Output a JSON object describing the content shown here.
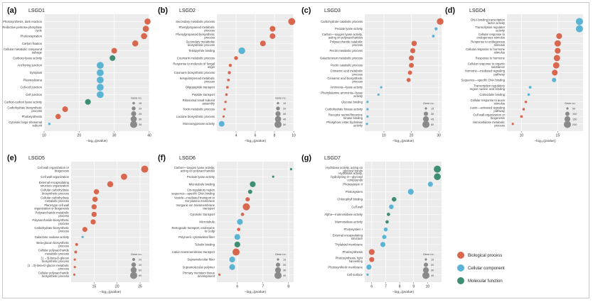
{
  "colors": {
    "Biological process": "#d9674f",
    "Cellular component": "#5bb4d4",
    "Molecular function": "#3e8e72"
  },
  "legend": {
    "size_title": "Gene no.",
    "color_items": [
      "Biological process",
      "Cellular component",
      "Molecular function"
    ]
  },
  "chart_data": [
    {
      "letter": "(a)",
      "title": "LSGD1",
      "type": "scatter",
      "xlabel": "−log₁₀(pvalue)",
      "xlim": [
        10,
        40
      ],
      "xticks": [
        10,
        20,
        30,
        40
      ],
      "size_legend": [
        15,
        20,
        25,
        30,
        35
      ],
      "terms": [
        {
          "label": "Photosynthesis, dark reaction",
          "x": 39.5,
          "cat": "Biological process",
          "size": 30
        },
        {
          "label": "Reductive pentose-phosphate cycle",
          "x": 39,
          "cat": "Biological process",
          "size": 30
        },
        {
          "label": "Photorespiration",
          "x": 38.5,
          "cat": "Biological process",
          "size": 30
        },
        {
          "label": "Carbon fixation",
          "x": 36,
          "cat": "Biological process",
          "size": 30
        },
        {
          "label": "Cellular metabolic compound salvage",
          "x": 30,
          "cat": "Biological process",
          "size": 28
        },
        {
          "label": "Carboxy-lyase activity",
          "x": 29.5,
          "cat": "Molecular function",
          "size": 28
        },
        {
          "label": "Anchoring junction",
          "x": 26,
          "cat": "Cellular component",
          "size": 34
        },
        {
          "label": "Symplast",
          "x": 26,
          "cat": "Cellular component",
          "size": 34
        },
        {
          "label": "Plasmodesma",
          "x": 26,
          "cat": "Cellular component",
          "size": 34
        },
        {
          "label": "Cell-cell junction",
          "x": 26,
          "cat": "Cellular component",
          "size": 34
        },
        {
          "label": "Cell junction",
          "x": 26,
          "cat": "Cellular component",
          "size": 34
        },
        {
          "label": "Carbon-carbon lyase activity",
          "x": 22.5,
          "cat": "Molecular function",
          "size": 28
        },
        {
          "label": "Carbohydrate biosynthetic process",
          "x": 16,
          "cat": "Biological process",
          "size": 28
        },
        {
          "label": "Photosynthesis",
          "x": 14,
          "cat": "Biological process",
          "size": 26
        },
        {
          "label": "Cytosolic large ribosomal subunit",
          "x": 11.5,
          "cat": "Cellular component",
          "size": 14
        }
      ]
    },
    {
      "letter": "(b)",
      "title": "LSGD2",
      "type": "scatter",
      "xlabel": "−log₁₀(pvalue)",
      "xlim": [
        2,
        10
      ],
      "xticks": [
        4,
        6,
        8,
        10
      ],
      "size_legend": [
        10,
        20,
        30,
        40,
        50
      ],
      "terms": [
        {
          "label": "Secondary metabolic process",
          "x": 9.8,
          "cat": "Biological process",
          "size": 48
        },
        {
          "label": "Phenylpropanoid metabolic process",
          "x": 7.8,
          "cat": "Biological process",
          "size": 35
        },
        {
          "label": "Phenylpropanoid biosynthetic process",
          "x": 7.8,
          "cat": "Biological process",
          "size": 35
        },
        {
          "label": "Secondary metabolite biosynthetic process",
          "x": 6.8,
          "cat": "Biological process",
          "size": 35
        },
        {
          "label": "Tetrapyrrole binding",
          "x": 4.6,
          "cat": "Cellular component",
          "size": 45
        },
        {
          "label": "Coumarin metabolic process",
          "x": 4.0,
          "cat": "Biological process",
          "size": 20
        },
        {
          "label": "Response to molecule of fungal origin",
          "x": 3.4,
          "cat": "Biological process",
          "size": 15
        },
        {
          "label": "Coumarin biosynthetic process",
          "x": 3.3,
          "cat": "Biological process",
          "size": 15
        },
        {
          "label": "Sesquiterpenoid metabolic process",
          "x": 3.2,
          "cat": "Biological process",
          "size": 12
        },
        {
          "label": "Oligopeptide transport",
          "x": 3.1,
          "cat": "Biological process",
          "size": 12
        },
        {
          "label": "Peptide transport",
          "x": 3.0,
          "cat": "Biological process",
          "size": 12
        },
        {
          "label": "Ribosomal small subunit assembly",
          "x": 2.9,
          "cat": "Biological process",
          "size": 10
        },
        {
          "label": "Toxin metabolic process",
          "x": 2.8,
          "cat": "Biological process",
          "size": 10
        },
        {
          "label": "Lactone biosynthetic process",
          "x": 2.7,
          "cat": "Biological process",
          "size": 10
        },
        {
          "label": "Monooxygenase activity",
          "x": 2.5,
          "cat": "Cellular component",
          "size": 35
        }
      ]
    },
    {
      "letter": "(c)",
      "title": "LSGD3",
      "type": "scatter",
      "xlabel": "−log₁₀(pvalue)",
      "xlim": [
        3,
        31
      ],
      "xticks": [
        10,
        20,
        30
      ],
      "size_legend": [
        15,
        30,
        45,
        60
      ],
      "terms": [
        {
          "label": "Carbohydrate catabolic process",
          "x": 30.5,
          "cat": "Biological process",
          "size": 55
        },
        {
          "label": "Pectate lyase activity",
          "x": 29,
          "cat": "Cellular component",
          "size": 20
        },
        {
          "label": "Carbon—oxygen lyase activity, acting on polysaccharides",
          "x": 28,
          "cat": "Cellular component",
          "size": 18
        },
        {
          "label": "Polysaccharide catabolic process",
          "x": 21,
          "cat": "Biological process",
          "size": 40
        },
        {
          "label": "Pectin metabolic process",
          "x": 20.5,
          "cat": "Biological process",
          "size": 38
        },
        {
          "label": "Galacturonan metabolic process",
          "x": 20,
          "cat": "Biological process",
          "size": 38
        },
        {
          "label": "Pectin catabolic process",
          "x": 20,
          "cat": "Biological process",
          "size": 36
        },
        {
          "label": "Cinnamic acid metabolic process",
          "x": 19.5,
          "cat": "Biological process",
          "size": 30
        },
        {
          "label": "Cinnamic acid biosynthetic process",
          "x": 19,
          "cat": "Biological process",
          "size": 28
        },
        {
          "label": "Ammonia—lyase activity",
          "x": 9,
          "cat": "Cellular component",
          "size": 15
        },
        {
          "label": "Phenylalanine ammonia—lyase activity",
          "x": 8,
          "cat": "Cellular component",
          "size": 15
        },
        {
          "label": "Glucose binding",
          "x": 4,
          "cat": "Cellular component",
          "size": 15
        },
        {
          "label": "Carbohydrate kinase activity",
          "x": 4,
          "cat": "Cellular component",
          "size": 15
        },
        {
          "label": "Receptor serine/threonine kinase binding",
          "x": 4,
          "cat": "Cellular component",
          "size": 15
        },
        {
          "label": "Phosphoric ester hydrolase activity",
          "x": 3.8,
          "cat": "Cellular component",
          "size": 15
        }
      ]
    },
    {
      "letter": "(d)",
      "title": "LSGD4",
      "type": "scatter",
      "xlabel": "−log₁₀(pvalue)",
      "xlim": [
        8,
        18.5
      ],
      "xticks": [
        10,
        15
      ],
      "size_legend": [
        50,
        100,
        150,
        200
      ],
      "terms": [
        {
          "label": "DNA-binding transcription factor activity",
          "x": 18,
          "cat": "Cellular component",
          "size": 200
        },
        {
          "label": "Transcription regulator activity",
          "x": 18,
          "cat": "Cellular component",
          "size": 200
        },
        {
          "label": "Cellular response to endogenous stimulus",
          "x": 15.2,
          "cat": "Biological process",
          "size": 150
        },
        {
          "label": "Response to endogenous stimulus",
          "x": 15.0,
          "cat": "Biological process",
          "size": 170
        },
        {
          "label": "Cellular response to hormone stimulus",
          "x": 15.0,
          "cat": "Biological process",
          "size": 150
        },
        {
          "label": "Response to hormone",
          "x": 14.9,
          "cat": "Biological process",
          "size": 170
        },
        {
          "label": "Cellular response to organic substance",
          "x": 14.8,
          "cat": "Biological process",
          "size": 170
        },
        {
          "label": "Hormone—mediated signaling pathway",
          "x": 14.6,
          "cat": "Biological process",
          "size": 150
        },
        {
          "label": "Sequence—specific DNA binding",
          "x": 14.5,
          "cat": "Cellular component",
          "size": 100
        },
        {
          "label": "Transcription regulatory region nucleic acid binding",
          "x": 11.2,
          "cat": "Cellular component",
          "size": 60
        },
        {
          "label": "Calmodulin binding",
          "x": 11.0,
          "cat": "Cellular component",
          "size": 55
        },
        {
          "label": "Cellular response to auxin stimulus",
          "x": 10.6,
          "cat": "Biological process",
          "size": 55
        },
        {
          "label": "Auxin—activated signaling pathway",
          "x": 10.3,
          "cat": "Biological process",
          "size": 55
        },
        {
          "label": "Cell wall organization or biogenesis",
          "x": 10.0,
          "cat": "Biological process",
          "size": 60
        },
        {
          "label": "Hemicellulose metabolic process",
          "x": 8.8,
          "cat": "Biological process",
          "size": 50
        }
      ]
    },
    {
      "letter": "(e)",
      "title": "LSGD5",
      "type": "scatter",
      "xlabel": "−log₁₀(pvalue)",
      "xlim": [
        10,
        27
      ],
      "xticks": [
        15,
        20,
        25
      ],
      "size_legend": [
        20,
        40,
        60,
        80
      ],
      "terms": [
        {
          "label": "Cell wall organization or biogenesis",
          "x": 26,
          "cat": "Biological process",
          "size": 80
        },
        {
          "label": "Cell wall organization",
          "x": 21.5,
          "cat": "Biological process",
          "size": 65
        },
        {
          "label": "External encapsulating structure organization",
          "x": 18.5,
          "cat": "Biological process",
          "size": 60
        },
        {
          "label": "Cellular carbohydrate biosynthetic process",
          "x": 15.5,
          "cat": "Biological process",
          "size": 50
        },
        {
          "label": "Cellular carbohydrate metabolic process",
          "x": 15.2,
          "cat": "Biological process",
          "size": 50
        },
        {
          "label": "Plant-type cell wall organization or biogenesis",
          "x": 15.0,
          "cat": "Biological process",
          "size": 48
        },
        {
          "label": "Polysaccharide metabolic process",
          "x": 15.0,
          "cat": "Biological process",
          "size": 48
        },
        {
          "label": "Polysaccharide biosynthetic process",
          "x": 14.8,
          "cat": "Biological process",
          "size": 48
        },
        {
          "label": "Carbohydrate biosynthetic process",
          "x": 13.0,
          "cat": "Biological process",
          "size": 45
        },
        {
          "label": "Galactose oxidase activity",
          "x": 12.5,
          "cat": "Cellular component",
          "size": 15
        },
        {
          "label": "Beta-glucan biosynthetic process",
          "x": 11.2,
          "cat": "Biological process",
          "size": 20
        },
        {
          "label": "Cellular polysaccharide metabolic process",
          "x": 11.0,
          "cat": "Biological process",
          "size": 20
        },
        {
          "label": "(1→3)-beta-D-glucan biosynthetic process",
          "x": 10.8,
          "cat": "Biological process",
          "size": 15
        },
        {
          "label": "(1→3)-beta-D-glucan metabolic process",
          "x": 10.8,
          "cat": "Biological process",
          "size": 15
        },
        {
          "label": "Cellular polysaccharide biosynthetic process",
          "x": 10.7,
          "cat": "Biological process",
          "size": 15
        }
      ]
    },
    {
      "letter": "(f)",
      "title": "LSGD6",
      "type": "scatter",
      "xlabel": "−log₁₀(pvalue)",
      "xlim": [
        5.2,
        8.2
      ],
      "xticks": [
        6,
        7,
        8
      ],
      "size_legend": [
        10,
        20,
        30,
        40
      ],
      "terms": [
        {
          "label": "Carbon—oxygen lyase activity, acting on polysaccharides",
          "x": 8.1,
          "cat": "Molecular function",
          "size": 10
        },
        {
          "label": "Pectate lyase activity",
          "x": 7.4,
          "cat": "Molecular function",
          "size": 10
        },
        {
          "label": "Microtubule binding",
          "x": 6.6,
          "cat": "Molecular function",
          "size": 30
        },
        {
          "label": "Cis-regulatory region sequence—specific DNA binding",
          "x": 6.5,
          "cat": "Molecular function",
          "size": 20
        },
        {
          "label": "Vesicle—mediated transport to the plasma membrane",
          "x": 6.4,
          "cat": "Biological process",
          "size": 20
        },
        {
          "label": "Inorganic ion transmembrane transport",
          "x": 6.35,
          "cat": "Biological process",
          "size": 40
        },
        {
          "label": "Cytosolic transport",
          "x": 6.2,
          "cat": "Biological process",
          "size": 15
        },
        {
          "label": "Microtubule",
          "x": 6.1,
          "cat": "Cellular component",
          "size": 30
        },
        {
          "label": "Retrograde transport, endosome to Golgi",
          "x": 6.05,
          "cat": "Biological process",
          "size": 15
        },
        {
          "label": "Polymeric cytoskeletal fiber",
          "x": 6.0,
          "cat": "Cellular component",
          "size": 30
        },
        {
          "label": "Tubulin binding",
          "x": 6.0,
          "cat": "Molecular function",
          "size": 30
        },
        {
          "label": "Cation transmembrane transport",
          "x": 5.95,
          "cat": "Biological process",
          "size": 40
        },
        {
          "label": "Supramolecular fiber",
          "x": 5.8,
          "cat": "Cellular component",
          "size": 30
        },
        {
          "label": "Supramolecular polymer",
          "x": 5.8,
          "cat": "Cellular component",
          "size": 30
        },
        {
          "label": "Primary meristem tissue development",
          "x": 5.3,
          "cat": "Biological process",
          "size": 10
        }
      ]
    },
    {
      "letter": "(g)",
      "title": "LSGD7",
      "type": "scatter",
      "xlabel": "−log₁₀(pvalue)",
      "xlim": [
        5.5,
        11
      ],
      "xticks": [
        6,
        7,
        8,
        9,
        10
      ],
      "size_legend": [
        10,
        20,
        30,
        40
      ],
      "terms": [
        {
          "label": "Hydrolase activity, acting on glycosyl bonds",
          "x": 10.7,
          "cat": "Molecular function",
          "size": 40
        },
        {
          "label": "Hydrolase activity, hydrolyzing O—glycosyl compounds",
          "x": 10.7,
          "cat": "Molecular function",
          "size": 38
        },
        {
          "label": "Photosystem II",
          "x": 10.2,
          "cat": "Cellular component",
          "size": 25
        },
        {
          "label": "Photosystem",
          "x": 8.8,
          "cat": "Cellular component",
          "size": 30
        },
        {
          "label": "Chlorophyll binding",
          "x": 7.6,
          "cat": "Molecular function",
          "size": 22
        },
        {
          "label": "Cell wall",
          "x": 7.4,
          "cat": "Cellular component",
          "size": 22
        },
        {
          "label": "Alpha—mannosidase activity",
          "x": 7.2,
          "cat": "Molecular function",
          "size": 15
        },
        {
          "label": "Mannosidase activity",
          "x": 7.1,
          "cat": "Molecular function",
          "size": 15
        },
        {
          "label": "Photosystem I",
          "x": 7.0,
          "cat": "Cellular component",
          "size": 18
        },
        {
          "label": "External encapsulating structure",
          "x": 6.9,
          "cat": "Cellular component",
          "size": 20
        },
        {
          "label": "Thylakoid membrane",
          "x": 6.8,
          "cat": "Cellular component",
          "size": 25
        },
        {
          "label": "Photosynthesis",
          "x": 6.0,
          "cat": "Biological process",
          "size": 30
        },
        {
          "label": "Photosynthesis, light harvesting",
          "x": 6.0,
          "cat": "Biological process",
          "size": 25
        },
        {
          "label": "Photosynthetic membrane",
          "x": 5.8,
          "cat": "Cellular component",
          "size": 25
        },
        {
          "label": "Cell surface",
          "x": 5.7,
          "cat": "Cellular component",
          "size": 10
        }
      ]
    }
  ]
}
